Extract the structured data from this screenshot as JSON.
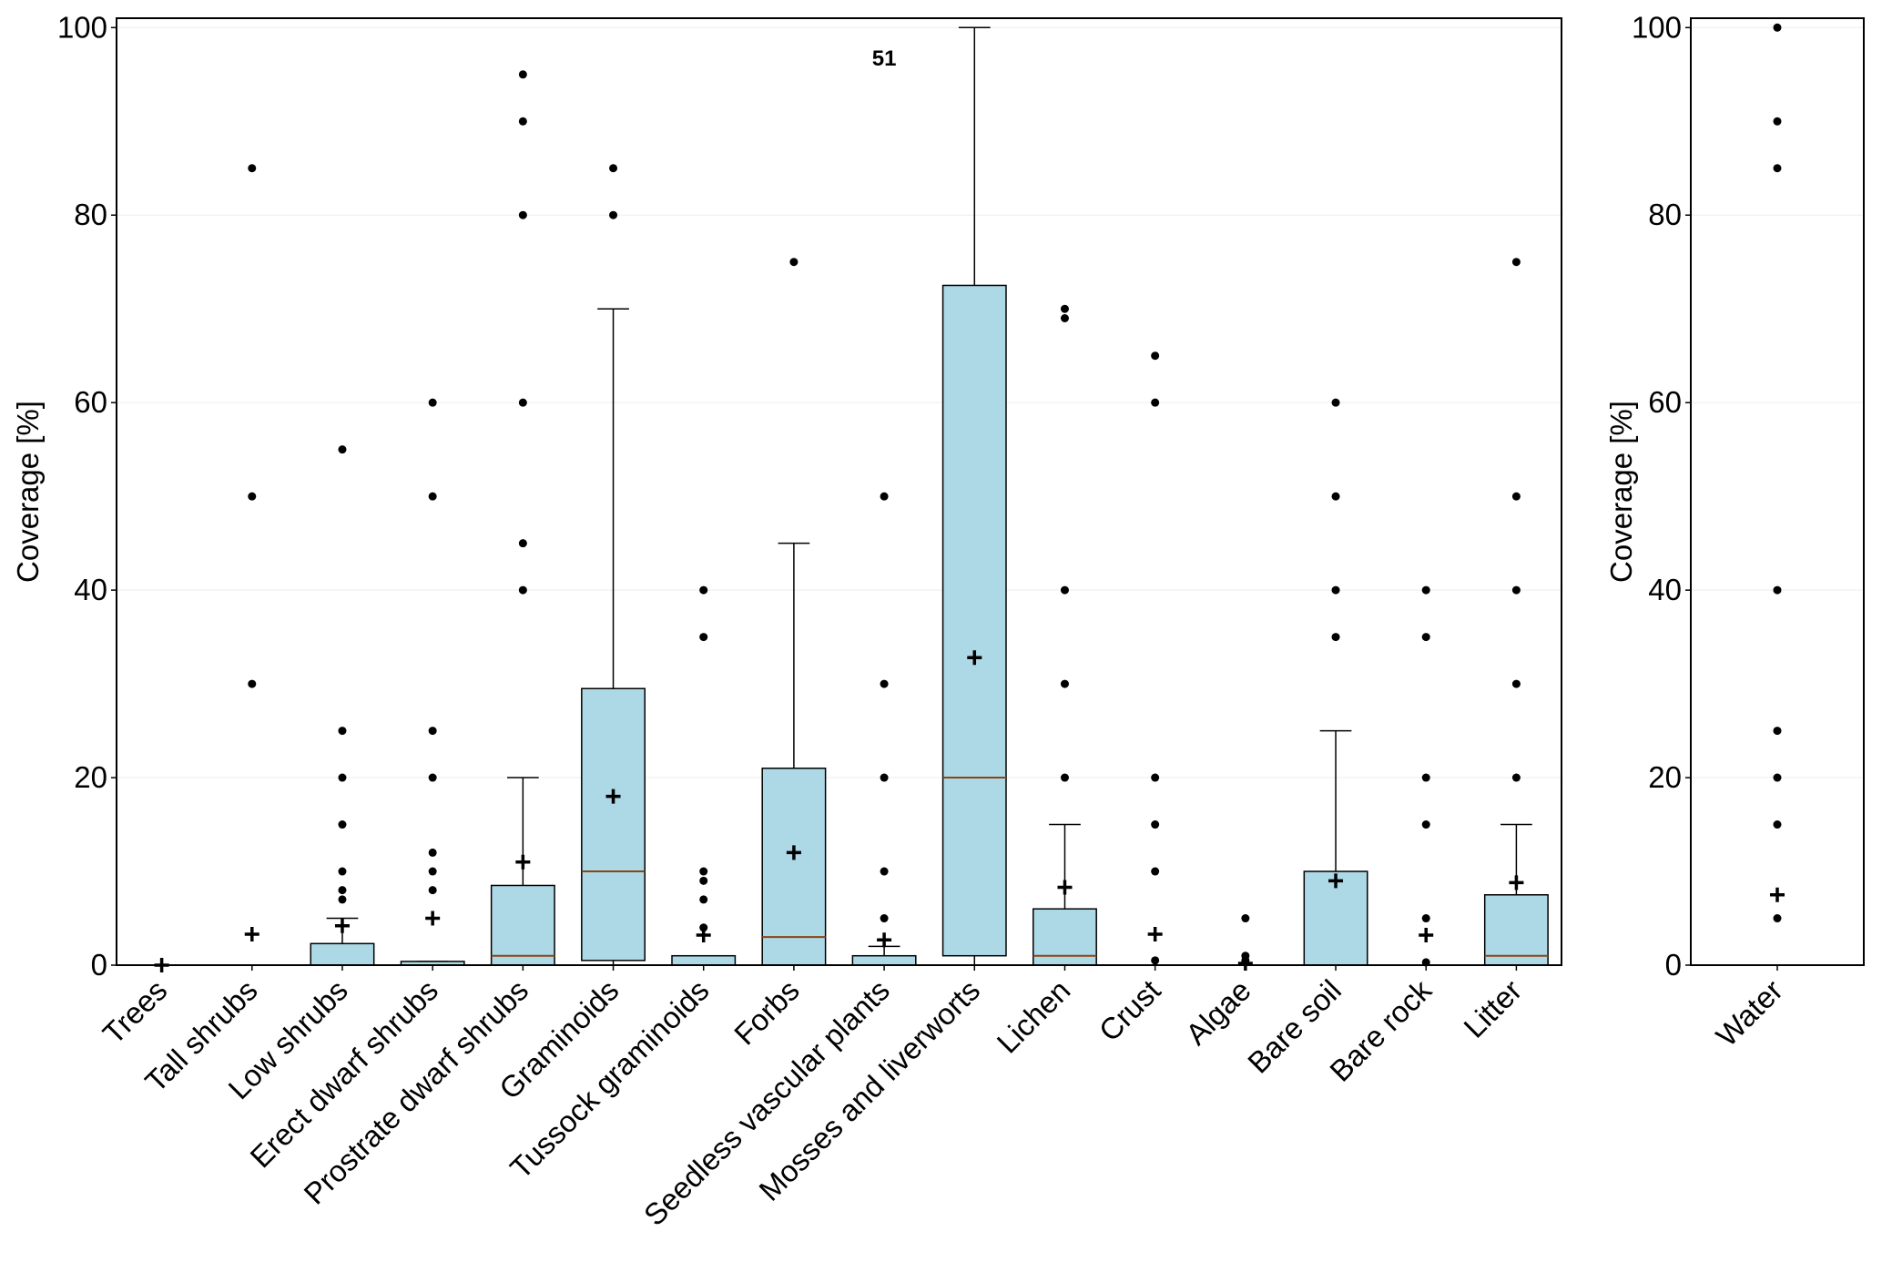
{
  "chart_data": [
    {
      "type": "box",
      "y_label": "Coverage [%]",
      "ylim": [
        0,
        101
      ],
      "yticks": [
        0,
        20,
        40,
        60,
        80,
        100
      ],
      "grid": true,
      "box_color": "#add8e6",
      "median_color": "#8b4513",
      "annotation": "51",
      "categories": [
        "Trees",
        "Tall shrubs",
        "Low shrubs",
        "Erect dwarf shrubs",
        "Prostrate dwarf shrubs",
        "Graminoids",
        "Tussock graminoids",
        "Forbs",
        "Seedless vascular plants",
        "Mosses and liverworts",
        "Lichen",
        "Crust",
        "Algae",
        "Bare soil",
        "Bare rock",
        "Litter"
      ],
      "boxes": [
        {
          "whislo": 0,
          "q1": 0,
          "med": 0,
          "q3": 0,
          "whishi": 0,
          "mean": 0,
          "fliers": []
        },
        {
          "whislo": 0,
          "q1": 0,
          "med": 0,
          "q3": 0,
          "whishi": 0,
          "mean": 3.3,
          "fliers": [
            30,
            50,
            85
          ]
        },
        {
          "whislo": 0,
          "q1": 0,
          "med": 0,
          "q3": 2.3,
          "whishi": 5,
          "mean": 4.2,
          "fliers": [
            7,
            8,
            10,
            15,
            20,
            25,
            55
          ]
        },
        {
          "whislo": 0,
          "q1": 0,
          "med": 0,
          "q3": 0.4,
          "whishi": 0.4,
          "mean": 5,
          "fliers": [
            8,
            10,
            12,
            20,
            25,
            50,
            60
          ]
        },
        {
          "whislo": 0,
          "q1": 0,
          "med": 1,
          "q3": 8.5,
          "whishi": 20,
          "mean": 11,
          "fliers": [
            40,
            45,
            60,
            80,
            90,
            95
          ]
        },
        {
          "whislo": 0,
          "q1": 0.5,
          "med": 10,
          "q3": 29.5,
          "whishi": 70,
          "mean": 18,
          "fliers": [
            80,
            85
          ]
        },
        {
          "whislo": 0,
          "q1": 0,
          "med": 0,
          "q3": 1,
          "whishi": 1,
          "mean": 3.2,
          "fliers": [
            4,
            7,
            9,
            10,
            35,
            40
          ]
        },
        {
          "whislo": 0,
          "q1": 0,
          "med": 3,
          "q3": 21,
          "whishi": 45,
          "mean": 12,
          "fliers": [
            75
          ]
        },
        {
          "whislo": 0,
          "q1": 0,
          "med": 0,
          "q3": 1,
          "whishi": 2,
          "mean": 2.7,
          "fliers": [
            5,
            10,
            20,
            30,
            50
          ]
        },
        {
          "whislo": 0,
          "q1": 1,
          "med": 20,
          "q3": 72.5,
          "whishi": 100,
          "mean": 32.8,
          "fliers": []
        },
        {
          "whislo": 0,
          "q1": 0,
          "med": 1,
          "q3": 6,
          "whishi": 15,
          "mean": 8.3,
          "fliers": [
            20,
            30,
            40,
            69,
            70
          ]
        },
        {
          "whislo": 0,
          "q1": 0,
          "med": 0,
          "q3": 0,
          "whishi": 0,
          "mean": 3.3,
          "fliers": [
            0.5,
            10,
            15,
            20,
            60,
            65
          ]
        },
        {
          "whislo": 0,
          "q1": 0,
          "med": 0,
          "q3": 0,
          "whishi": 0,
          "mean": 0.2,
          "fliers": [
            0.5,
            1,
            5
          ]
        },
        {
          "whislo": 0,
          "q1": 0,
          "med": 0,
          "q3": 10,
          "whishi": 25,
          "mean": 9,
          "fliers": [
            35,
            40,
            50,
            60
          ]
        },
        {
          "whislo": 0,
          "q1": 0,
          "med": 0,
          "q3": 0,
          "whishi": 0,
          "mean": 3.2,
          "fliers": [
            0.3,
            5,
            15,
            20,
            35,
            40
          ]
        },
        {
          "whislo": 0,
          "q1": 0,
          "med": 1,
          "q3": 7.5,
          "whishi": 15,
          "mean": 8.8,
          "fliers": [
            20,
            30,
            40,
            50,
            75
          ]
        }
      ]
    },
    {
      "type": "box",
      "y_label": "Coverage [%]",
      "ylim": [
        0,
        101
      ],
      "yticks": [
        0,
        20,
        40,
        60,
        80,
        100
      ],
      "grid": true,
      "box_color": "#add8e6",
      "median_color": "#8b4513",
      "categories": [
        "Water"
      ],
      "boxes": [
        {
          "whislo": 0,
          "q1": 0,
          "med": 0,
          "q3": 0,
          "whishi": 0,
          "mean": 7.5,
          "fliers": [
            5,
            15,
            20,
            25,
            40,
            85,
            90,
            100
          ]
        }
      ]
    }
  ]
}
